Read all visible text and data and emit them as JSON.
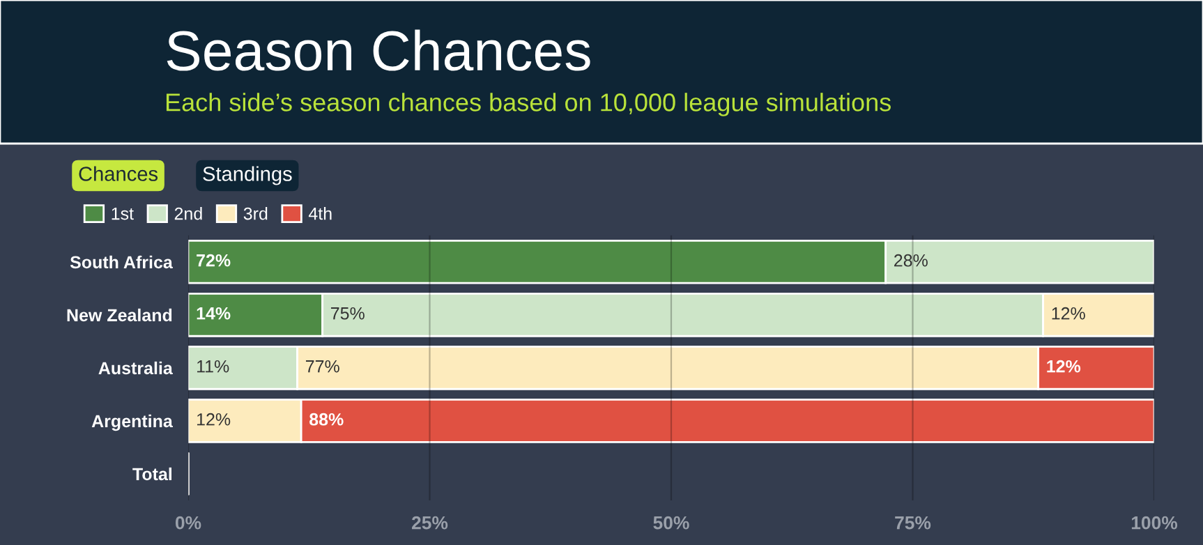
{
  "chart_data": {
    "type": "bar",
    "orientation": "horizontal",
    "stacked": true,
    "title": "Season Chances",
    "subtitle": "Each side’s season chances based on 10,000 league simulations",
    "annotations": [
      "Chances",
      "Standings"
    ],
    "categories": [
      "South Africa",
      "New Zealand",
      "Australia",
      "Argentina",
      "Total"
    ],
    "series": [
      {
        "name": "1st",
        "color": "#4e8b45",
        "values": [
          72.2,
          13.9,
          null,
          null,
          null
        ],
        "value_labels": [
          "72%",
          "14%",
          null,
          null,
          null
        ]
      },
      {
        "name": "2nd",
        "color": "#cde5c8",
        "values": [
          27.8,
          74.6,
          11.3,
          null,
          null
        ],
        "value_labels": [
          "28%",
          "75%",
          "11%",
          null,
          null
        ]
      },
      {
        "name": "3rd",
        "color": "#fdebbd",
        "values": [
          null,
          11.5,
          76.7,
          11.7,
          null
        ],
        "value_labels": [
          null,
          "12%",
          "77%",
          "12%",
          null
        ]
      },
      {
        "name": "4th",
        "color": "#e05142",
        "values": [
          null,
          null,
          12.0,
          88.3,
          null
        ],
        "value_labels": [
          null,
          null,
          "12%",
          "88%",
          null
        ]
      }
    ],
    "xlim": [
      0,
      100
    ],
    "xticks": [
      {
        "value": 0,
        "label": "0%"
      },
      {
        "value": 25,
        "label": "25%"
      },
      {
        "value": 50,
        "label": "50%"
      },
      {
        "value": 75,
        "label": "75%"
      },
      {
        "value": 100,
        "label": "100%"
      }
    ],
    "grid": "x",
    "legend": "top left"
  }
}
